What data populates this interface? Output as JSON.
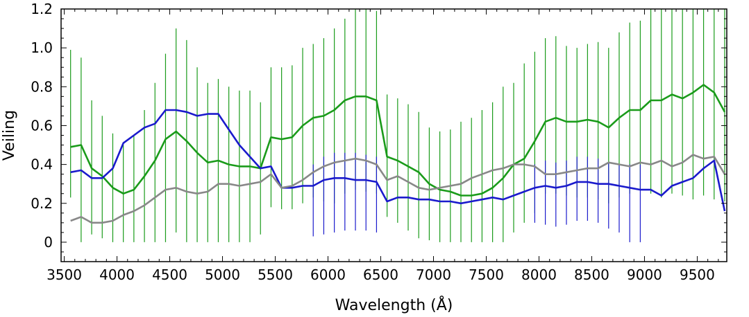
{
  "chart_data": {
    "type": "line",
    "title": "",
    "xlabel": "Wavelength (Å)",
    "ylabel": "Veiling",
    "xlim": [
      3470,
      9780
    ],
    "ylim": [
      -0.1,
      1.2
    ],
    "grid": false,
    "legend": "none",
    "x_ticks": [
      3500,
      4000,
      4500,
      5000,
      5500,
      6000,
      6500,
      7000,
      7500,
      8000,
      8500,
      9000,
      9500
    ],
    "y_ticks": [
      0,
      0.2,
      0.4,
      0.6,
      0.8,
      1.0,
      1.2
    ],
    "x_tick_labels": [
      "3500",
      "4000",
      "4500",
      "5000",
      "5500",
      "6000",
      "6500",
      "7000",
      "7500",
      "8000",
      "8500",
      "9000",
      "9500"
    ],
    "y_tick_labels": [
      "0",
      "0.2",
      "0.4",
      "0.6",
      "0.8",
      "1.0",
      "1.2"
    ],
    "x": [
      3560,
      3660,
      3760,
      3860,
      3960,
      4060,
      4160,
      4260,
      4360,
      4460,
      4560,
      4660,
      4760,
      4860,
      4960,
      5060,
      5160,
      5260,
      5360,
      5460,
      5560,
      5660,
      5760,
      5860,
      5960,
      6060,
      6160,
      6260,
      6360,
      6460,
      6560,
      6660,
      6760,
      6860,
      6960,
      7060,
      7160,
      7260,
      7360,
      7460,
      7560,
      7660,
      7760,
      7860,
      7960,
      8060,
      8160,
      8260,
      8360,
      8460,
      8560,
      8660,
      8760,
      8860,
      8960,
      9060,
      9160,
      9260,
      9360,
      9460,
      9560,
      9660,
      9760
    ],
    "series": [
      {
        "color": "#1a9b1a",
        "values": [
          0.49,
          0.5,
          0.38,
          0.34,
          0.28,
          0.25,
          0.27,
          0.34,
          0.42,
          0.53,
          0.57,
          0.52,
          0.46,
          0.41,
          0.42,
          0.4,
          0.39,
          0.39,
          0.38,
          0.54,
          0.53,
          0.54,
          0.6,
          0.64,
          0.65,
          0.68,
          0.73,
          0.75,
          0.75,
          0.73,
          0.44,
          0.42,
          0.39,
          0.36,
          0.3,
          0.27,
          0.26,
          0.24,
          0.24,
          0.25,
          0.28,
          0.33,
          0.4,
          0.43,
          0.52,
          0.62,
          0.64,
          0.62,
          0.62,
          0.63,
          0.62,
          0.59,
          0.64,
          0.68,
          0.68,
          0.73,
          0.73,
          0.76,
          0.74,
          0.77,
          0.81,
          0.77,
          0.67
        ],
        "err_low": [
          0.23,
          0.0,
          0.04,
          0.02,
          0.0,
          0.0,
          0.0,
          0.0,
          0.0,
          0.0,
          0.05,
          0.0,
          0.0,
          0.0,
          0.0,
          0.0,
          0.0,
          0.0,
          0.04,
          0.18,
          0.17,
          0.17,
          0.2,
          0.23,
          0.21,
          0.2,
          0.25,
          0.27,
          0.26,
          0.25,
          0.13,
          0.1,
          0.06,
          0.02,
          0.01,
          0.0,
          0.0,
          0.0,
          0.0,
          0.0,
          0.0,
          0.0,
          0.05,
          0.1,
          0.15,
          0.25,
          0.25,
          0.24,
          0.23,
          0.23,
          0.22,
          0.2,
          0.23,
          0.25,
          0.27,
          0.25,
          0.23,
          0.25,
          0.24,
          0.22,
          0.24,
          0.22,
          0.21
        ],
        "err_high": [
          0.99,
          0.95,
          0.73,
          0.65,
          0.56,
          0.5,
          0.55,
          0.68,
          0.82,
          0.97,
          1.1,
          1.04,
          0.9,
          0.82,
          0.84,
          0.8,
          0.78,
          0.78,
          0.72,
          0.9,
          0.9,
          0.91,
          1.0,
          1.02,
          1.05,
          1.1,
          1.15,
          1.2,
          1.2,
          1.19,
          0.76,
          0.74,
          0.71,
          0.67,
          0.59,
          0.57,
          0.58,
          0.62,
          0.64,
          0.68,
          0.72,
          0.8,
          0.82,
          0.92,
          0.98,
          1.05,
          1.06,
          1.01,
          1.0,
          1.02,
          1.03,
          1.0,
          1.08,
          1.13,
          1.14,
          1.2,
          1.2,
          1.2,
          1.2,
          1.2,
          1.2,
          1.2,
          1.2
        ]
      },
      {
        "color": "#1a1acc",
        "values": [
          0.36,
          0.37,
          0.33,
          0.33,
          0.38,
          0.51,
          0.55,
          0.59,
          0.61,
          0.68,
          0.68,
          0.67,
          0.65,
          0.66,
          0.66,
          0.58,
          0.5,
          0.44,
          0.38,
          0.39,
          0.28,
          0.28,
          0.29,
          0.29,
          0.32,
          0.33,
          0.33,
          0.32,
          0.32,
          0.31,
          0.21,
          0.23,
          0.23,
          0.22,
          0.22,
          0.21,
          0.21,
          0.2,
          0.21,
          0.22,
          0.23,
          0.22,
          0.24,
          0.26,
          0.28,
          0.29,
          0.28,
          0.29,
          0.31,
          0.31,
          0.3,
          0.3,
          0.29,
          0.28,
          0.27,
          0.27,
          0.24,
          0.29,
          0.31,
          0.33,
          0.38,
          0.42,
          0.16
        ],
        "err_low": [
          null,
          null,
          null,
          null,
          null,
          null,
          null,
          null,
          null,
          null,
          null,
          null,
          null,
          null,
          null,
          null,
          null,
          null,
          null,
          null,
          null,
          null,
          null,
          0.03,
          0.04,
          0.05,
          0.06,
          0.06,
          0.06,
          0.05,
          null,
          null,
          null,
          null,
          null,
          null,
          null,
          null,
          null,
          null,
          null,
          null,
          null,
          null,
          0.1,
          0.09,
          0.08,
          0.09,
          0.11,
          0.11,
          0.1,
          0.07,
          0.05,
          0.0,
          0.0,
          null,
          null,
          null,
          null,
          null,
          null,
          null,
          null
        ],
        "err_high": [
          null,
          null,
          null,
          null,
          0.7,
          0.93,
          0.99,
          1.0,
          1.0,
          1.09,
          1.11,
          1.1,
          1.09,
          1.09,
          1.1,
          0.89,
          0.8,
          0.78,
          0.7,
          null,
          null,
          null,
          null,
          0.4,
          0.44,
          0.46,
          0.46,
          0.46,
          0.45,
          0.44,
          null,
          null,
          null,
          null,
          null,
          null,
          null,
          null,
          null,
          null,
          null,
          null,
          null,
          null,
          0.4,
          0.42,
          0.41,
          0.42,
          0.44,
          0.44,
          0.43,
          0.41,
          0.4,
          0.4,
          0.4,
          null,
          null,
          null,
          null,
          null,
          null,
          null,
          null
        ]
      },
      {
        "color": "#888888",
        "values": [
          0.11,
          0.13,
          0.1,
          0.1,
          0.11,
          0.14,
          0.16,
          0.19,
          0.23,
          0.27,
          0.28,
          0.26,
          0.25,
          0.26,
          0.3,
          0.3,
          0.29,
          0.3,
          0.31,
          0.35,
          0.28,
          0.29,
          0.32,
          0.36,
          0.39,
          0.41,
          0.42,
          0.43,
          0.42,
          0.4,
          0.32,
          0.34,
          0.31,
          0.28,
          0.27,
          0.28,
          0.29,
          0.3,
          0.33,
          0.35,
          0.37,
          0.38,
          0.4,
          0.4,
          0.39,
          0.35,
          0.35,
          0.36,
          0.37,
          0.38,
          0.38,
          0.41,
          0.4,
          0.39,
          0.41,
          0.4,
          0.42,
          0.39,
          0.41,
          0.45,
          0.43,
          0.44,
          0.35
        ]
      }
    ]
  }
}
